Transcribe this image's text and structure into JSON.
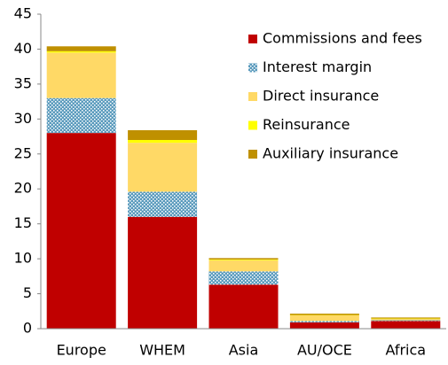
{
  "chart_data": {
    "type": "stacked_bar",
    "categories": [
      "Europe",
      "WHEM",
      "Asia",
      "AU/OCE",
      "Africa"
    ],
    "series": [
      {
        "name": "Commissions and fees",
        "color": "#c00000",
        "values": [
          28,
          16,
          6.3,
          0.9,
          1.1
        ]
      },
      {
        "name": "Interest margin",
        "color": "#5b9bbd",
        "pattern": "dots",
        "values": [
          5,
          3.6,
          1.9,
          0.2,
          0.1
        ]
      },
      {
        "name": "Direct insurance",
        "color": "#ffd966",
        "values": [
          6.5,
          7,
          1.6,
          0.8,
          0.2
        ]
      },
      {
        "name": "Reinsurance",
        "color": "#ffff00",
        "values": [
          0.2,
          0.4,
          0.1,
          0.05,
          0.05
        ]
      },
      {
        "name": "Auxiliary insurance",
        "color": "#bf9000",
        "values": [
          0.7,
          1.4,
          0.2,
          0.2,
          0.15
        ]
      }
    ],
    "ylim": [
      0,
      45
    ],
    "yticks": [
      0,
      5,
      10,
      15,
      20,
      25,
      30,
      35,
      40,
      45
    ],
    "grid": false,
    "legend": "top-right"
  }
}
